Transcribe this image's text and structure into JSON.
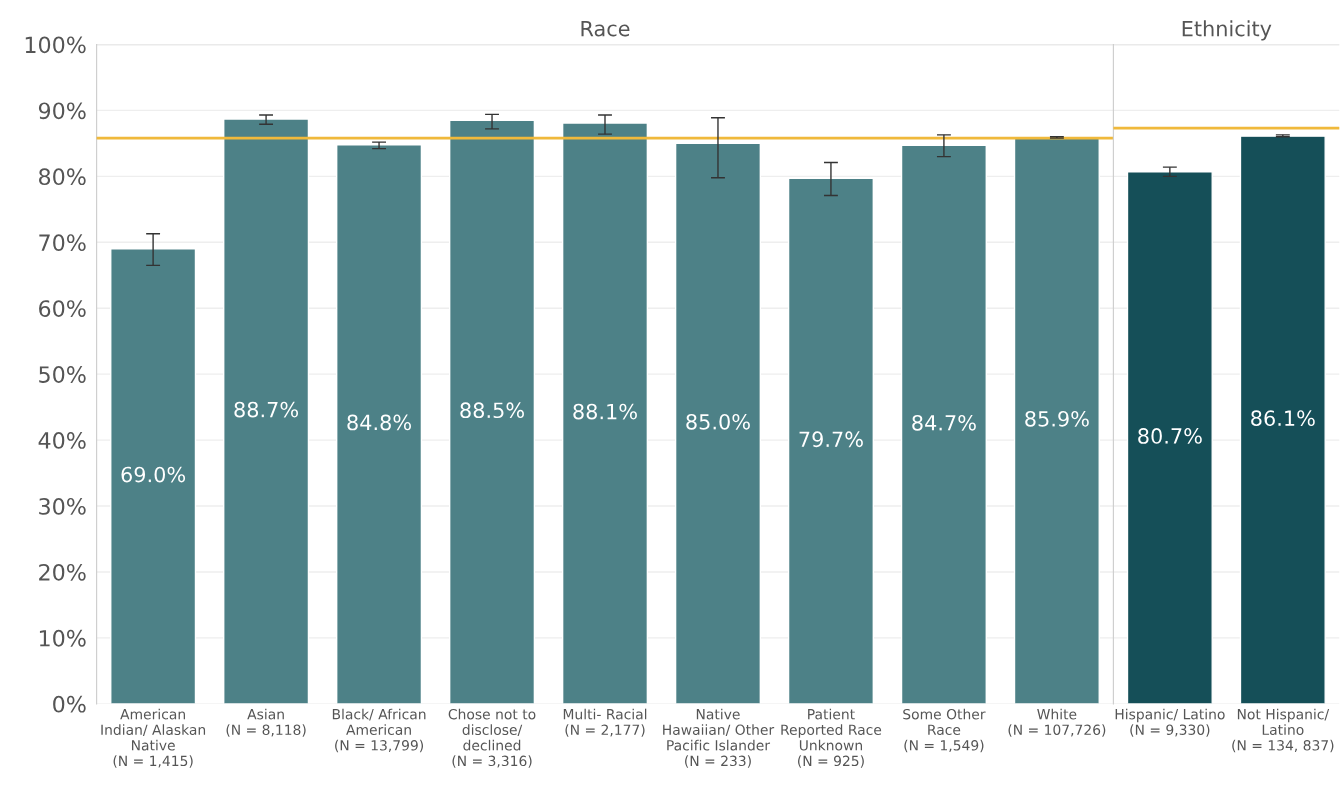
{
  "chart_data": [
    {
      "type": "bar",
      "title": "Race",
      "categories": [
        "American\nIndian/ Alaskan\nNative\n(N = 1,415)",
        "Asian\n(N = 8,118)",
        "Black/ African\nAmerican\n(N = 13,799)",
        "Chose not to\ndisclose/\ndeclined\n(N = 3,316)",
        "Multi- Racial\n(N = 2,177)",
        "Native\nHawaiian/ Other\nPacific Islander\n(N = 233)",
        "Patient\nReported Race\nUnknown\n(N = 925)",
        "Some Other\nRace\n(N = 1,549)",
        "White\n(N = 107,726)"
      ],
      "values": [
        69.0,
        88.7,
        84.8,
        88.5,
        88.1,
        85.0,
        79.7,
        84.7,
        85.9
      ],
      "errors": [
        [
          66.5,
          71.3
        ],
        [
          87.9,
          89.3
        ],
        [
          84.2,
          85.2
        ],
        [
          87.2,
          89.4
        ],
        [
          86.4,
          89.3
        ],
        [
          79.8,
          88.9
        ],
        [
          77.1,
          82.1
        ],
        [
          83.0,
          86.3
        ],
        [
          85.8,
          86.0
        ]
      ],
      "color": "#4d8187",
      "value_labels": [
        "69.0%",
        "88.7%",
        "84.8%",
        "88.5%",
        "88.1%",
        "85.0%",
        "79.7%",
        "84.7%",
        "85.9%"
      ],
      "ylim": [
        0,
        100
      ],
      "yticks": [
        {
          "value": 0,
          "label": "0%"
        },
        {
          "value": 10,
          "label": "10%"
        },
        {
          "value": 20,
          "label": "20%"
        },
        {
          "value": 30,
          "label": "30%"
        },
        {
          "value": 40,
          "label": "40%"
        },
        {
          "value": 50,
          "label": "50%"
        },
        {
          "value": 60,
          "label": "60%"
        },
        {
          "value": 70,
          "label": "70%"
        },
        {
          "value": 80,
          "label": "80%"
        },
        {
          "value": 90,
          "label": "90%"
        },
        {
          "value": 100,
          "label": "100%"
        }
      ],
      "ref_lines": [
        {
          "axis": "y",
          "value": 85.8,
          "color": "#f0b93b"
        }
      ],
      "grid": "y",
      "legend": false
    },
    {
      "type": "bar",
      "title": "Ethnicity",
      "categories": [
        "Hispanic/ Latino\n(N = 9,330)",
        "Not Hispanic/\nLatino\n(N = 134, 837)"
      ],
      "values": [
        80.7,
        86.1
      ],
      "errors": [
        [
          80.0,
          81.4
        ],
        [
          86.0,
          86.3
        ]
      ],
      "color": "#154f58",
      "value_labels": [
        "80.7%",
        "86.1%"
      ],
      "ylim": [
        0,
        100
      ],
      "ref_lines": [
        {
          "axis": "y",
          "value": 87.3,
          "color": "#f0b93b"
        }
      ],
      "grid": "y",
      "legend": false,
      "tick_labels": "x"
    }
  ]
}
